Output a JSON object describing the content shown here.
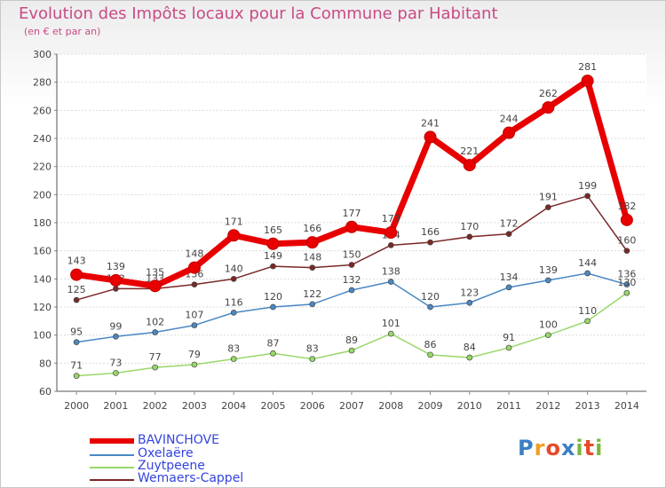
{
  "title": "Evolution des Impôts locaux pour la Commune par Habitant",
  "subtitle": "(en € et par an)",
  "logo": "Proxiti",
  "chart_data": {
    "type": "line",
    "title": "Evolution des Impôts locaux pour la Commune par Habitant",
    "subtitle": "(en € et par an)",
    "xlabel": "",
    "ylabel": "",
    "x": [
      "2000",
      "2001",
      "2002",
      "2003",
      "2004",
      "2005",
      "2006",
      "2007",
      "2008",
      "2009",
      "2010",
      "2011",
      "2012",
      "2013",
      "2014"
    ],
    "ylim": [
      60,
      300
    ],
    "yticks": [
      60,
      80,
      100,
      120,
      140,
      160,
      180,
      200,
      220,
      240,
      260,
      280,
      300
    ],
    "grid": true,
    "legend_position": "bottom-left",
    "series": [
      {
        "name": "BAVINCHOVE",
        "color": "#e80000",
        "values": [
          143,
          139,
          135,
          148,
          171,
          165,
          166,
          177,
          173,
          241,
          221,
          244,
          262,
          281,
          182
        ],
        "labels": [
          "143",
          "139",
          "135",
          "148",
          "171",
          "165",
          "166",
          "177",
          "173",
          "241",
          "221",
          "244",
          "262",
          "281",
          "182"
        ]
      },
      {
        "name": "Oxelaëre",
        "color": "#4a88c4",
        "values": [
          95,
          99,
          102,
          107,
          116,
          120,
          122,
          132,
          138,
          120,
          123,
          134,
          139,
          144,
          136
        ],
        "labels": [
          "95",
          "99",
          "102",
          "107",
          "116",
          "120",
          "122",
          "132",
          "138",
          "120",
          "123",
          "134",
          "139",
          "144",
          "136"
        ]
      },
      {
        "name": "Zuytpeene",
        "color": "#98d868",
        "values": [
          71,
          73,
          77,
          79,
          83,
          87,
          83,
          89,
          101,
          86,
          84,
          91,
          100,
          110,
          130
        ],
        "labels": [
          "71",
          "73",
          "77",
          "79",
          "83",
          "87",
          "83",
          "89",
          "101",
          "86",
          "84",
          "91",
          "100",
          "110",
          "130"
        ]
      },
      {
        "name": "Wemaers-Cappel",
        "color": "#7a2828",
        "values": [
          125,
          133,
          133,
          136,
          140,
          149,
          148,
          150,
          164,
          166,
          170,
          172,
          191,
          199,
          160
        ],
        "labels": [
          "125",
          "133",
          "133",
          "136",
          "140",
          "149",
          "148",
          "150",
          "164",
          "166",
          "170",
          "172",
          "191",
          "199",
          "160"
        ]
      }
    ]
  }
}
